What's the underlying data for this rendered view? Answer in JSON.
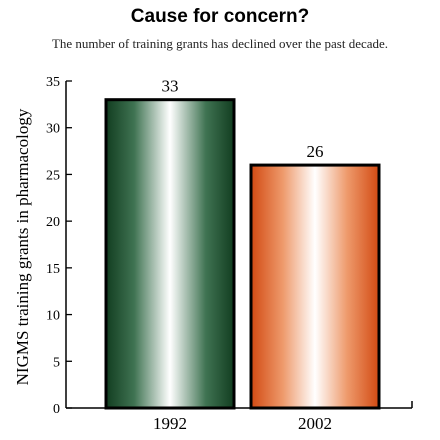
{
  "title": "Cause for concern?",
  "subtitle": "The number of training grants has declined over the past decade.",
  "chart_data": {
    "type": "bar",
    "categories": [
      "1992",
      "2002"
    ],
    "values": [
      33,
      26
    ],
    "data_labels": [
      "33",
      "26"
    ],
    "ylabel": "NIGMS training grants in pharmacology",
    "xlabel": "",
    "ylim": [
      0,
      35
    ],
    "yticks": [
      0,
      5,
      10,
      15,
      20,
      25,
      30,
      35
    ],
    "grid": false,
    "bar_colors": [
      "#1f4d2c",
      "#d95a1e"
    ]
  }
}
